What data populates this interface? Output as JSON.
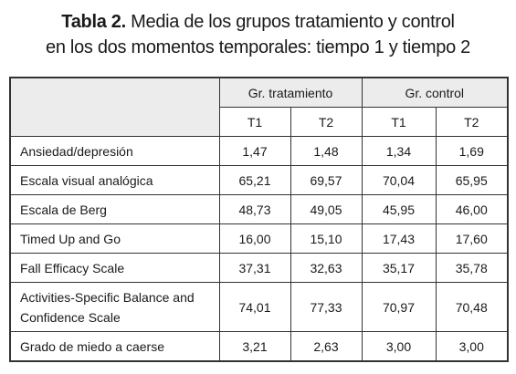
{
  "caption": {
    "label": "Tabla 2.",
    "line1": "Media de los grupos tratamiento y control",
    "line2": "en los dos momentos temporales: tiempo 1 y tiempo 2"
  },
  "table": {
    "groups": [
      "Gr. tratamiento",
      "Gr. control"
    ],
    "subheaders": [
      "T1",
      "T2",
      "T1",
      "T2"
    ],
    "rows": [
      [
        "Ansiedad/depresión",
        "1,47",
        "1,48",
        "1,34",
        "1,69"
      ],
      [
        "Escala visual analógica",
        "65,21",
        "69,57",
        "70,04",
        "65,95"
      ],
      [
        "Escala de Berg",
        "48,73",
        "49,05",
        "45,95",
        "46,00"
      ],
      [
        "Timed Up and Go",
        "16,00",
        "15,10",
        "17,43",
        "17,60"
      ],
      [
        "Fall Efficacy Scale",
        "37,31",
        "32,63",
        "35,17",
        "35,78"
      ],
      [
        "Activities-Specific Balance and Confidence Scale",
        "74,01",
        "77,33",
        "70,97",
        "70,48"
      ],
      [
        "Grado de miedo a caerse",
        "3,21",
        "2,63",
        "3,00",
        "3,00"
      ]
    ]
  }
}
